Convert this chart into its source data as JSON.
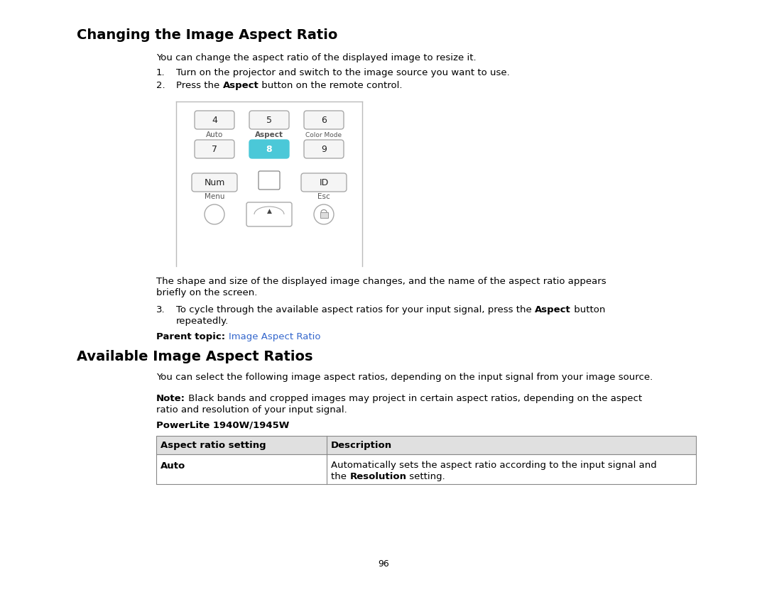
{
  "title1": "Changing the Image Aspect Ratio",
  "title2": "Available Image Aspect Ratios",
  "bg_color": "#ffffff",
  "text_color": "#000000",
  "link_color": "#3366cc",
  "intro_text": "You can change the aspect ratio of the displayed image to resize it.",
  "step1": "Turn on the projector and switch to the image source you want to use.",
  "step2_prefix": "Press the ",
  "step2_bold": "Aspect",
  "step2_suffix": " button on the remote control.",
  "step3_line1_prefix": "To cycle through the available aspect ratios for your input signal, press the ",
  "step3_line1_bold": "Aspect",
  "step3_line1_suffix": " button",
  "step3_line2": "repeatedly.",
  "after_image_line1": "The shape and size of the displayed image changes, and the name of the aspect ratio appears",
  "after_image_line2": "briefly on the screen.",
  "parent_topic_label": "Parent topic: ",
  "parent_topic_link": "Image Aspect Ratio",
  "section2_intro": "You can select the following image aspect ratios, depending on the input signal from your image source.",
  "note_bold": "Note:",
  "note_text": " Black bands and cropped images may project in certain aspect ratios, depending on the aspect",
  "note_line2": "ratio and resolution of your input signal.",
  "powerlite_label": "PowerLite 1940W/1945W",
  "table_header1": "Aspect ratio setting",
  "table_header2": "Description",
  "table_row1_col1": "Auto",
  "table_row1_col2_line1": "Automatically sets the aspect ratio according to the input signal and",
  "table_row1_col2_line2_pre": "the ",
  "table_row1_col2_line2_bold": "Resolution",
  "table_row1_col2_line2_suf": " setting.",
  "page_number": "96",
  "button_color": "#4bc8d8",
  "button_text_color": "#ffffff",
  "button_border_color": "#999999",
  "normal_button_color": "#f5f5f5",
  "normal_button_border": "#aaaaaa",
  "remote_border_color": "#999999",
  "label_color": "#555555",
  "font_size_body": 9.5,
  "font_size_title": 14,
  "font_size_btn": 9,
  "font_size_label": 7.5
}
